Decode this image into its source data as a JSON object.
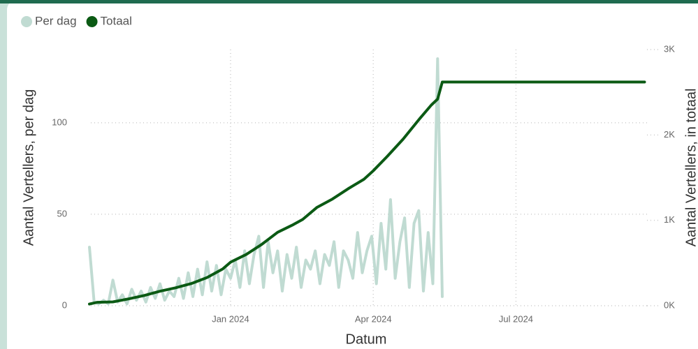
{
  "chart_data": {
    "type": "line",
    "xlabel": "Datum",
    "ylabel": "Aantal Vertellers, per dag",
    "y2label": "Aantal Vertellers, in totaal",
    "xlim": [
      -8,
      360
    ],
    "xticks": [
      {
        "value": 90,
        "label": "Jan 2024"
      },
      {
        "value": 181,
        "label": "Apr 2024"
      },
      {
        "value": 272,
        "label": "Jul 2024"
      }
    ],
    "ylim": [
      0,
      140
    ],
    "yticks": [
      0,
      50,
      100
    ],
    "y2lim": [
      0,
      3000
    ],
    "y2ticks": [
      {
        "value": 0,
        "label": "0K"
      },
      {
        "value": 1000,
        "label": "1K"
      },
      {
        "value": 2000,
        "label": "2K"
      },
      {
        "value": 3000,
        "label": "3K"
      }
    ],
    "grid": true,
    "legend": "top-left",
    "series": [
      {
        "name": "Per dag",
        "color": "#c0dbd2",
        "x": [
          0,
          3,
          6,
          9,
          12,
          15,
          18,
          21,
          24,
          27,
          30,
          33,
          36,
          39,
          42,
          45,
          48,
          51,
          54,
          57,
          60,
          63,
          66,
          69,
          72,
          75,
          78,
          81,
          84,
          87,
          90,
          93,
          96,
          99,
          102,
          105,
          108,
          111,
          114,
          117,
          120,
          123,
          126,
          129,
          132,
          135,
          138,
          141,
          144,
          147,
          150,
          153,
          156,
          159,
          162,
          165,
          168,
          171,
          174,
          177,
          180,
          183,
          186,
          189,
          192,
          195,
          198,
          201,
          204,
          207,
          210,
          213,
          216,
          219,
          222,
          225
        ],
        "values": [
          32,
          2,
          1,
          3,
          1,
          14,
          2,
          6,
          1,
          9,
          3,
          8,
          2,
          10,
          4,
          12,
          3,
          8,
          5,
          15,
          4,
          18,
          5,
          20,
          6,
          24,
          8,
          22,
          6,
          20,
          15,
          25,
          10,
          30,
          12,
          28,
          38,
          10,
          35,
          18,
          30,
          8,
          28,
          15,
          32,
          10,
          25,
          20,
          30,
          12,
          28,
          22,
          35,
          10,
          30,
          25,
          15,
          40,
          18,
          30,
          38,
          12,
          45,
          20,
          58,
          15,
          35,
          48,
          10,
          45,
          52,
          8,
          40,
          12,
          135,
          5
        ]
      },
      {
        "name": "Totaal",
        "color": "#0b5a14",
        "axis": "y2",
        "x": [
          0,
          5,
          15,
          25,
          35,
          45,
          55,
          65,
          75,
          85,
          90,
          100,
          110,
          120,
          130,
          136,
          145,
          155,
          165,
          175,
          181,
          190,
          200,
          211,
          218,
          222,
          225,
          354
        ],
        "values": [
          20,
          40,
          45,
          80,
          120,
          170,
          210,
          260,
          330,
          430,
          510,
          600,
          720,
          860,
          950,
          1010,
          1150,
          1250,
          1370,
          1480,
          1580,
          1750,
          1950,
          2200,
          2350,
          2420,
          2620,
          2620
        ]
      }
    ]
  }
}
